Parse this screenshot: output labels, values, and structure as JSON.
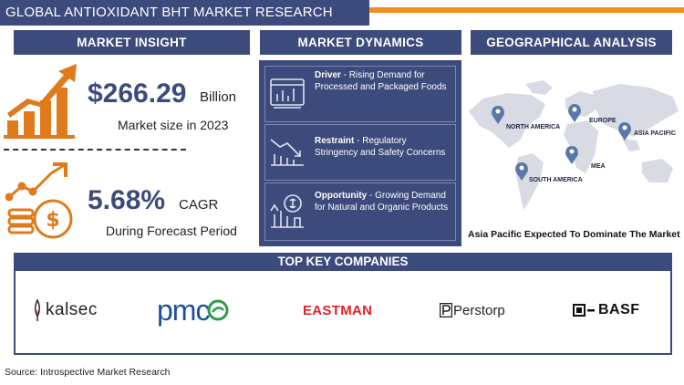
{
  "title": "GLOBAL ANTIOXIDANT BHT MARKET RESEARCH REPORT",
  "colors": {
    "navy": "#3d4b7c",
    "orange": "#f28c1e",
    "map_gray": "#d8dbe3"
  },
  "insight": {
    "header": "MARKET INSIGHT",
    "market_size_value": "$266.29",
    "market_size_unit": "Billion",
    "market_size_caption": "Market size in 2023",
    "cagr_value": "5.68%",
    "cagr_unit": "CAGR",
    "cagr_caption": "During Forecast Period",
    "icons": [
      "growth-chart-icon",
      "dollar-coin-stack-icon"
    ]
  },
  "dynamics": {
    "header": "MARKET DYNAMICS",
    "items": [
      {
        "label": "Driver",
        "sep": " - ",
        "text": "Rising Demand for Processed and Packaged Foods",
        "icon": "browser-chart-icon"
      },
      {
        "label": "Restraint",
        "sep": " - ",
        "text": "Regulatory Stringency and Safety Concerns",
        "icon": "declining-chart-icon"
      },
      {
        "label": "Opportunity",
        "sep": " - ",
        "text": "Growing Demand for Natural and Organic Products",
        "icon": "opportunity-growth-icon"
      }
    ]
  },
  "geo": {
    "header": "GEOGRAPHICAL ANALYSIS",
    "regions": [
      "NORTH AMERICA",
      "EUROPE",
      "ASIA PACIFIC",
      "MEA",
      "SOUTH AMERICA"
    ],
    "caption": "Asia Pacific Expected To Dominate The Market"
  },
  "companies": {
    "header": "TOP KEY COMPANIES",
    "logos": [
      "kalsec",
      "pmc",
      "EASTMAN",
      "Perstorp",
      "BASF"
    ]
  },
  "source": "Source: Introspective Market Research"
}
